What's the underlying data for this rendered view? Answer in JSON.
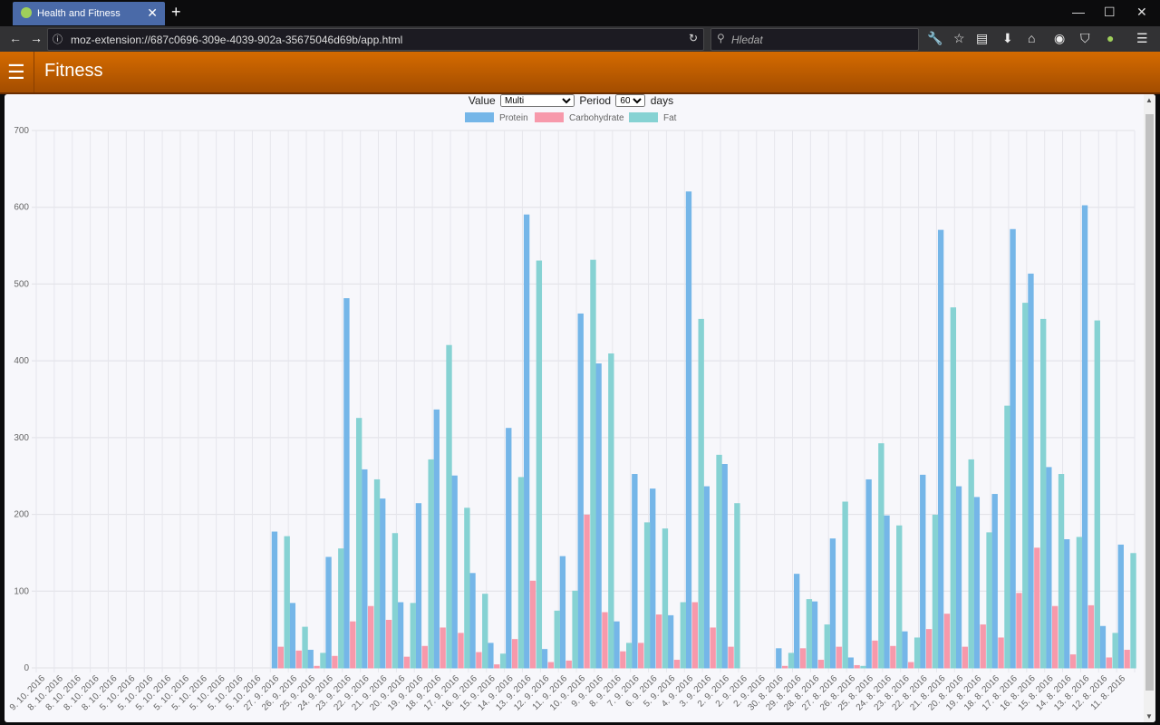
{
  "browser": {
    "tab_title": "Health and Fitness",
    "url": "moz-extension://687c0696-309e-4039-902a-35675046d69b/app.html",
    "search_placeholder": "Hledat"
  },
  "app": {
    "title": "Fitness"
  },
  "controls": {
    "value_label": "Value",
    "value_selected": "Multi",
    "period_label": "Period",
    "period_selected": "60",
    "days_label": "days"
  },
  "colors": {
    "protein": "#75b6e8",
    "carbohydrate": "#f799ab",
    "fat": "#86d2d3",
    "appbar": "#c15d00"
  },
  "chart_data": {
    "type": "bar",
    "ylim": [
      0,
      700
    ],
    "yticks": [
      0,
      100,
      200,
      300,
      400,
      500,
      600,
      700
    ],
    "legend_position": "top",
    "categories": [
      "9. 10. 2016",
      "8. 10. 2016",
      "8. 10. 2016",
      "8. 10. 2016",
      "8. 10. 2016",
      "5. 10. 2016",
      "5. 10. 2016",
      "5. 10. 2016",
      "5. 10. 2016",
      "5. 10. 2016",
      "5. 10. 2016",
      "5. 10. 2016",
      "5. 10. 2016",
      "27. 9. 2016",
      "26. 9. 2016",
      "25. 9. 2016",
      "24. 9. 2016",
      "23. 9. 2016",
      "22. 9. 2016",
      "21. 9. 2016",
      "20. 9. 2016",
      "19. 9. 2016",
      "18. 9. 2016",
      "17. 9. 2016",
      "16. 9. 2016",
      "15. 9. 2016",
      "14. 9. 2016",
      "13. 9. 2016",
      "12. 9. 2016",
      "11. 9. 2016",
      "10. 9. 2016",
      "9. 9. 2016",
      "8. 9. 2016",
      "7. 9. 2016",
      "6. 9. 2016",
      "5. 9. 2016",
      "4. 9. 2016",
      "3. 9. 2016",
      "2. 9. 2016",
      "2. 9. 2016",
      "2. 9. 2016",
      "30. 8. 2016",
      "29. 8. 2016",
      "28. 8. 2016",
      "27. 8. 2016",
      "26. 8. 2016",
      "25. 8. 2016",
      "24. 8. 2016",
      "23. 8. 2016",
      "22. 8. 2016",
      "21. 8. 2016",
      "20. 8. 2016",
      "19. 8. 2016",
      "18. 8. 2016",
      "17. 8. 2016",
      "16. 8. 2016",
      "15. 8. 2016",
      "14. 8. 2016",
      "13. 8. 2016",
      "12. 8. 2016",
      "11. 8. 2016"
    ],
    "series": [
      {
        "name": "Protein",
        "values": [
          0,
          0,
          0,
          0,
          0,
          0,
          0,
          0,
          0,
          0,
          0,
          0,
          0,
          177,
          84,
          23,
          144,
          481,
          258,
          220,
          85,
          214,
          336,
          250,
          123,
          32,
          312,
          590,
          24,
          145,
          461,
          396,
          60,
          252,
          233,
          68,
          620,
          236,
          265,
          0,
          0,
          25,
          122,
          86,
          168,
          13,
          245,
          198,
          47,
          251,
          570,
          236,
          222,
          226,
          571,
          513,
          261,
          167,
          602,
          54,
          160
        ]
      },
      {
        "name": "Carbohydrate",
        "values": [
          0,
          0,
          0,
          0,
          0,
          0,
          0,
          0,
          0,
          0,
          0,
          0,
          0,
          27,
          22,
          2,
          15,
          60,
          80,
          62,
          14,
          28,
          52,
          45,
          20,
          4,
          37,
          113,
          7,
          9,
          199,
          72,
          21,
          32,
          69,
          10,
          85,
          52,
          27,
          0,
          0,
          2,
          25,
          10,
          27,
          3,
          35,
          28,
          7,
          50,
          70,
          27,
          56,
          39,
          97,
          156,
          80,
          17,
          81,
          13,
          23
        ]
      },
      {
        "name": "Fat",
        "values": [
          0,
          0,
          0,
          0,
          0,
          0,
          0,
          0,
          0,
          0,
          0,
          0,
          0,
          171,
          53,
          19,
          155,
          325,
          245,
          175,
          84,
          271,
          420,
          208,
          96,
          18,
          248,
          530,
          74,
          100,
          531,
          409,
          32,
          189,
          181,
          85,
          454,
          277,
          214,
          0,
          0,
          19,
          89,
          56,
          216,
          2,
          292,
          185,
          39,
          199,
          469,
          271,
          176,
          341,
          475,
          454,
          252,
          170,
          452,
          45,
          149
        ]
      }
    ]
  }
}
